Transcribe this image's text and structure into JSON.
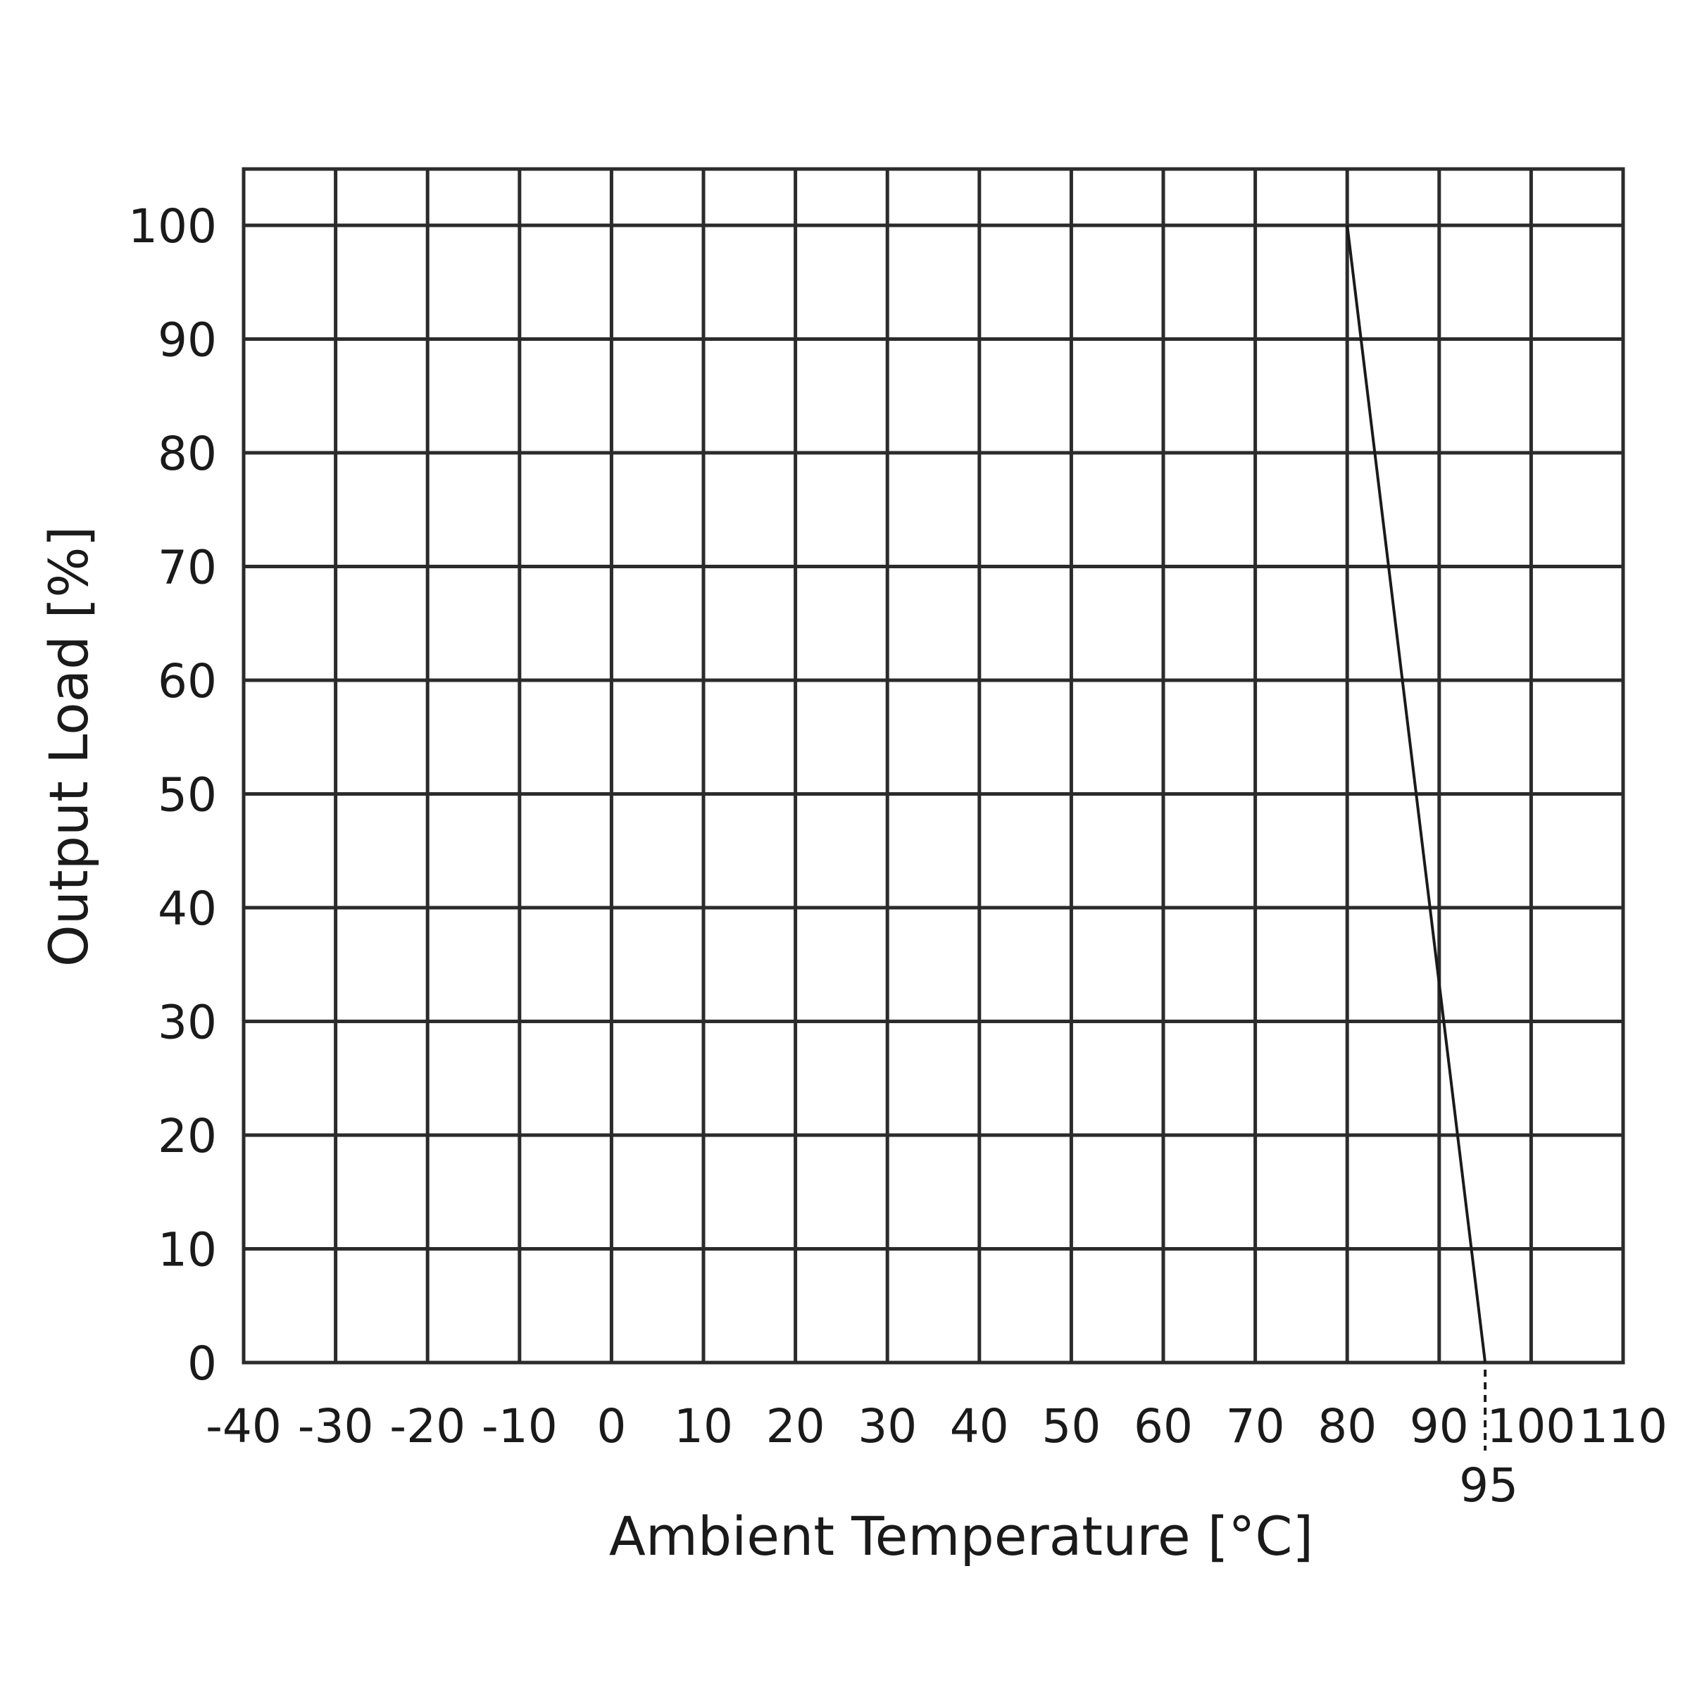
{
  "chart_data": {
    "type": "line",
    "title": "",
    "xlabel": "Ambient Temperature [°C]",
    "ylabel": "Output Load [%]",
    "x_ticks": [
      -40,
      -30,
      -20,
      -10,
      0,
      10,
      20,
      30,
      40,
      50,
      60,
      70,
      80,
      90,
      100,
      110
    ],
    "y_ticks": [
      0,
      10,
      20,
      30,
      40,
      50,
      60,
      70,
      80,
      90,
      100
    ],
    "ylim": [
      0,
      105
    ],
    "grid": true,
    "special_x_marker": 95,
    "series": [
      {
        "x": [
          80,
          95
        ],
        "y": [
          100,
          0
        ]
      }
    ]
  }
}
